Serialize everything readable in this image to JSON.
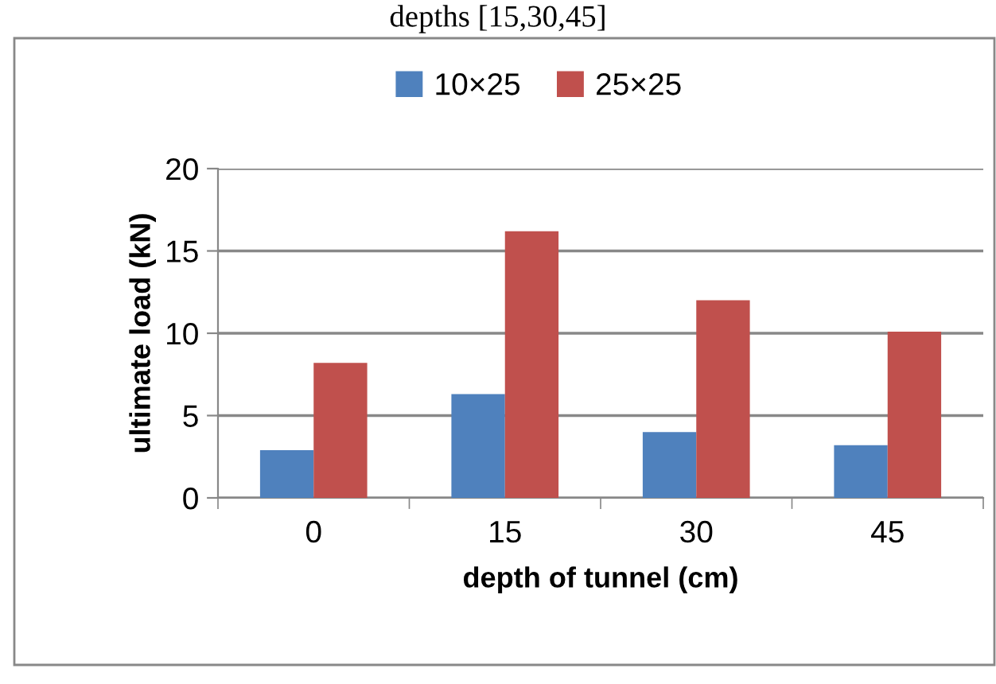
{
  "chart_data": {
    "type": "bar",
    "title": "depths [15,30,45]",
    "categories": [
      "0",
      "15",
      "30",
      "45"
    ],
    "series": [
      {
        "name": "10×25",
        "color": "#4f81bd",
        "values": [
          2.9,
          6.3,
          4.0,
          3.2
        ]
      },
      {
        "name": "25×25",
        "color": "#c0504d",
        "values": [
          8.2,
          16.2,
          12.0,
          10.1
        ]
      }
    ],
    "xlabel": "depth of tunnel (cm)",
    "ylabel": "ultimate load (kN)",
    "ylim": [
      0,
      20
    ],
    "yticks": [
      0,
      5,
      10,
      15,
      20
    ],
    "grid": "y",
    "legend": "top"
  }
}
